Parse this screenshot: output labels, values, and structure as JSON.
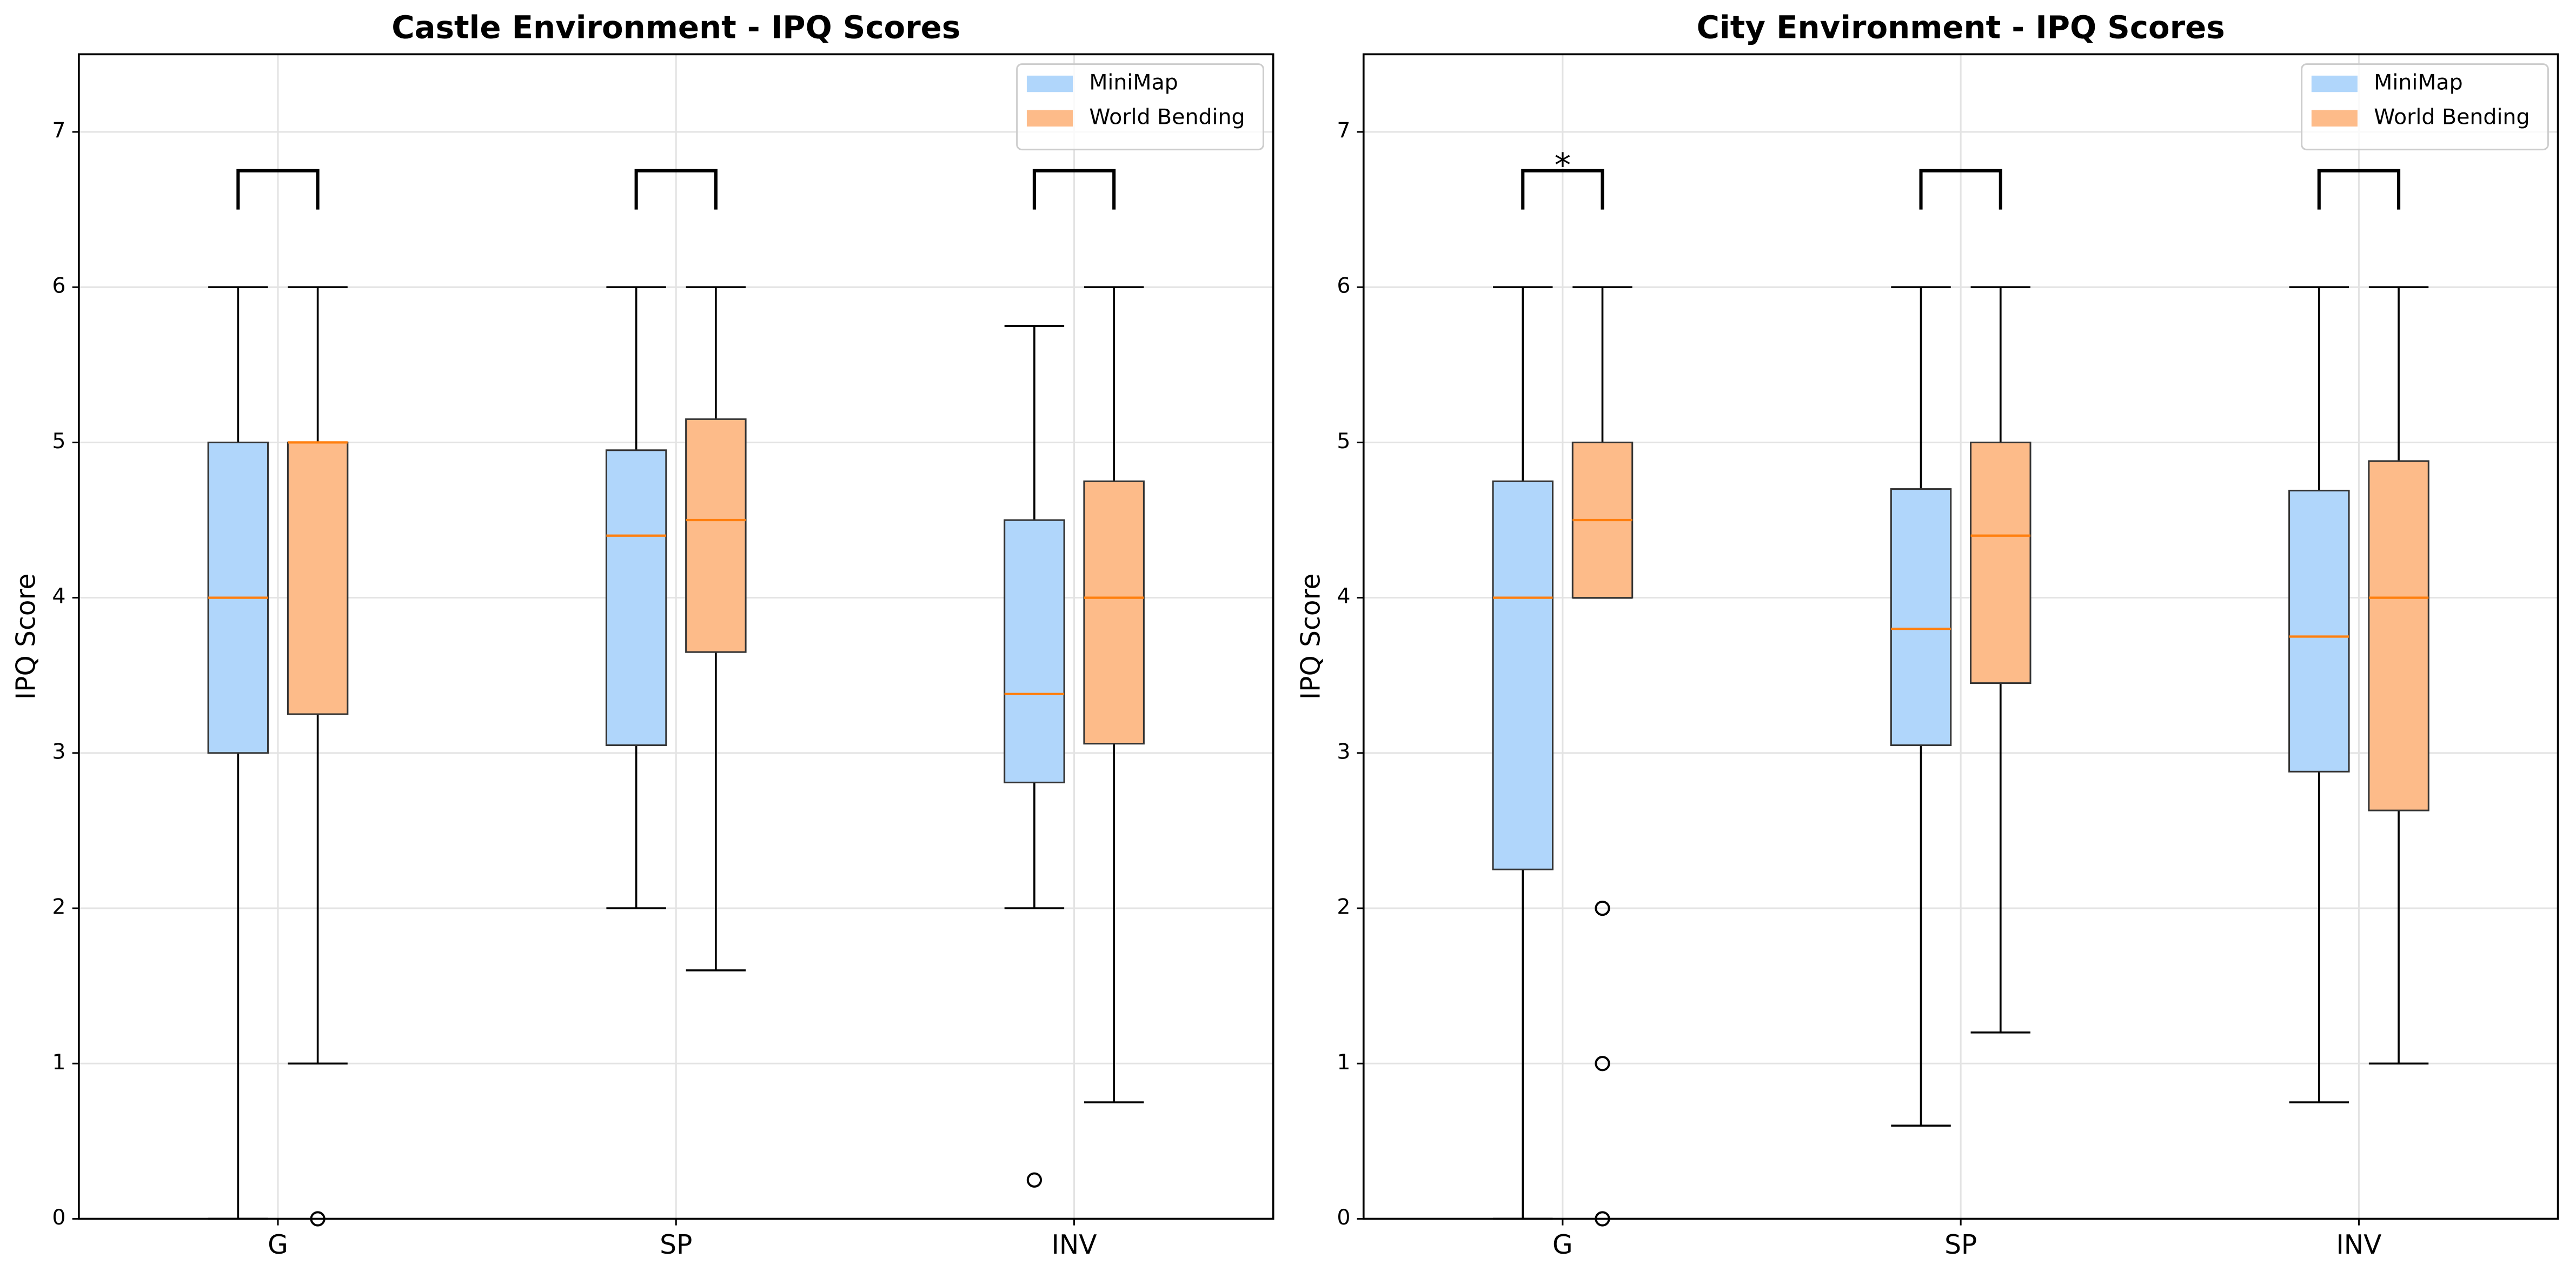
{
  "chart_data": [
    {
      "type": "box",
      "title": "Castle Environment - IPQ Scores",
      "ylabel": "IPQ Score",
      "categories": [
        "G",
        "SP",
        "INV"
      ],
      "ylim": [
        0,
        7.5
      ],
      "yticks": [
        0,
        1,
        2,
        3,
        4,
        5,
        6,
        7
      ],
      "grid": true,
      "legend": "upper right",
      "median_color": "#ff7f0e",
      "series": [
        {
          "name": "MiniMap",
          "color": "#b0d6fb",
          "boxes": [
            {
              "whislo": 0,
              "q1": 3,
              "med": 4,
              "q3": 5,
              "whishi": 6
            },
            {
              "whislo": 2,
              "q1": 3.05,
              "med": 4.4,
              "q3": 4.95,
              "whishi": 6
            },
            {
              "whislo": 2,
              "q1": 2.81,
              "med": 3.38,
              "q3": 4.5,
              "whishi": 5.75,
              "fliers": [
                0.25
              ]
            }
          ]
        },
        {
          "name": "World Bending",
          "color": "#fdbb89",
          "boxes": [
            {
              "whislo": 1,
              "q1": 3.25,
              "med": 5,
              "q3": 5,
              "whishi": 6,
              "fliers": [
                0
              ]
            },
            {
              "whislo": 1.6,
              "q1": 3.65,
              "med": 4.5,
              "q3": 5.15,
              "whishi": 6
            },
            {
              "whislo": 0.75,
              "q1": 3.06,
              "med": 4,
              "q3": 4.75,
              "whishi": 6
            }
          ]
        }
      ],
      "brackets": [
        {
          "low": 6.5,
          "high": 6.75
        },
        {
          "low": 6.5,
          "high": 6.75
        },
        {
          "low": 6.5,
          "high": 6.75
        }
      ]
    },
    {
      "type": "box",
      "title": "City Environment - IPQ Scores",
      "ylabel": "IPQ Score",
      "categories": [
        "G",
        "SP",
        "INV"
      ],
      "ylim": [
        0,
        7.5
      ],
      "yticks": [
        0,
        1,
        2,
        3,
        4,
        5,
        6,
        7
      ],
      "grid": true,
      "legend": "upper right",
      "median_color": "#ff7f0e",
      "series": [
        {
          "name": "MiniMap",
          "color": "#b0d6fb",
          "boxes": [
            {
              "whislo": 0,
              "q1": 2.25,
              "med": 4,
              "q3": 4.75,
              "whishi": 6
            },
            {
              "whislo": 0.6,
              "q1": 3.05,
              "med": 3.8,
              "q3": 4.7,
              "whishi": 6
            },
            {
              "whislo": 0.75,
              "q1": 2.88,
              "med": 3.75,
              "q3": 4.69,
              "whishi": 6
            }
          ]
        },
        {
          "name": "World Bending",
          "color": "#fdbb89",
          "boxes": [
            {
              "whislo": 4,
              "q1": 4,
              "med": 4.5,
              "q3": 5,
              "whishi": 6,
              "fliers": [
                2,
                1,
                0
              ]
            },
            {
              "whislo": 1.2,
              "q1": 3.45,
              "med": 4.4,
              "q3": 5,
              "whishi": 6
            },
            {
              "whislo": 1,
              "q1": 2.63,
              "med": 4,
              "q3": 4.88,
              "whishi": 6
            }
          ]
        }
      ],
      "brackets": [
        {
          "low": 6.5,
          "high": 6.75,
          "label": "*"
        },
        {
          "low": 6.5,
          "high": 6.75
        },
        {
          "low": 6.5,
          "high": 6.75
        }
      ]
    }
  ]
}
